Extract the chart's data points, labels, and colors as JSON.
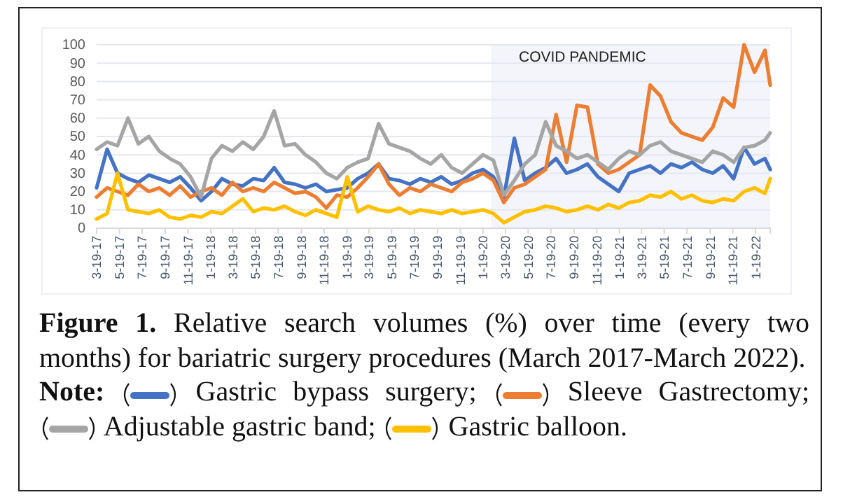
{
  "chart_data": {
    "type": "line",
    "title": "Figure 1. Relative search volumes (%) over time (every two months) for bariatric surgery procedures (March 2017-March 2022).",
    "legend_title": "Note:",
    "legend": "bottom",
    "grid": "y",
    "x": [
      "2017-03-19",
      "2017-04-16",
      "2017-05-14",
      "2017-06-11",
      "2017-07-09",
      "2017-08-06",
      "2017-09-03",
      "2017-10-01",
      "2017-10-29",
      "2017-11-26",
      "2017-12-24",
      "2018-01-21",
      "2018-02-18",
      "2018-03-18",
      "2018-04-15",
      "2018-05-13",
      "2018-06-10",
      "2018-07-08",
      "2018-08-05",
      "2018-09-02",
      "2018-09-30",
      "2018-10-28",
      "2018-11-25",
      "2018-12-23",
      "2019-01-20",
      "2019-02-17",
      "2019-03-17",
      "2019-04-14",
      "2019-05-12",
      "2019-06-09",
      "2019-07-07",
      "2019-08-04",
      "2019-09-01",
      "2019-09-29",
      "2019-10-27",
      "2019-11-24",
      "2019-12-22",
      "2020-01-19",
      "2020-02-16",
      "2020-03-15",
      "2020-04-12",
      "2020-05-10",
      "2020-06-07",
      "2020-07-05",
      "2020-08-02",
      "2020-08-30",
      "2020-09-27",
      "2020-10-25",
      "2020-11-22",
      "2020-12-20",
      "2021-01-17",
      "2021-02-14",
      "2021-03-14",
      "2021-04-11",
      "2021-05-09",
      "2021-06-06",
      "2021-07-04",
      "2021-08-01",
      "2021-08-29",
      "2021-09-26",
      "2021-10-24",
      "2021-11-21",
      "2021-12-19",
      "2022-01-16",
      "2022-02-13",
      "2022-02-27"
    ],
    "series": [
      {
        "name": "Gastric bypass surgery;",
        "color": "#4472c4",
        "values": [
          22,
          43,
          30,
          27,
          25,
          29,
          27,
          25,
          28,
          22,
          15,
          20,
          27,
          24,
          23,
          27,
          26,
          33,
          25,
          24,
          22,
          24,
          20,
          21,
          22,
          27,
          30,
          35,
          27,
          26,
          24,
          27,
          25,
          28,
          24,
          26,
          30,
          32,
          28,
          17,
          49,
          26,
          30,
          33,
          38,
          30,
          32,
          35,
          28,
          24,
          20,
          30,
          32,
          34,
          30,
          35,
          33,
          36,
          32,
          30,
          34,
          27,
          44,
          35,
          38,
          32
        ]
      },
      {
        "name": "Sleeve Gastrectomy;",
        "color": "#ed7d31",
        "values": [
          17,
          22,
          20,
          18,
          24,
          20,
          22,
          18,
          23,
          17,
          20,
          22,
          18,
          25,
          20,
          22,
          20,
          25,
          22,
          19,
          20,
          17,
          11,
          18,
          17,
          22,
          28,
          35,
          24,
          18,
          22,
          20,
          24,
          22,
          20,
          25,
          27,
          30,
          26,
          14,
          22,
          24,
          28,
          32,
          62,
          36,
          67,
          66,
          35,
          30,
          32,
          36,
          40,
          78,
          72,
          58,
          52,
          50,
          48,
          55,
          71,
          66,
          100,
          85,
          97,
          78
        ]
      },
      {
        "name": "Adjustable gastric band;",
        "color": "#a5a5a5",
        "values": [
          43,
          47,
          45,
          60,
          46,
          50,
          42,
          38,
          35,
          28,
          17,
          38,
          45,
          42,
          47,
          43,
          50,
          64,
          45,
          46,
          40,
          36,
          30,
          27,
          33,
          36,
          38,
          57,
          46,
          44,
          42,
          38,
          35,
          40,
          33,
          30,
          35,
          40,
          37,
          18,
          26,
          35,
          40,
          58,
          45,
          42,
          38,
          40,
          36,
          32,
          38,
          42,
          40,
          45,
          47,
          42,
          40,
          38,
          36,
          42,
          40,
          36,
          44,
          45,
          48,
          52
        ]
      },
      {
        "name": "Gastric balloon.",
        "color": "#ffc000",
        "values": [
          5,
          8,
          30,
          10,
          9,
          8,
          10,
          6,
          5,
          7,
          6,
          9,
          8,
          12,
          16,
          9,
          11,
          10,
          12,
          9,
          7,
          10,
          8,
          6,
          28,
          9,
          12,
          10,
          9,
          11,
          8,
          10,
          9,
          8,
          10,
          8,
          9,
          10,
          8,
          3,
          6,
          9,
          10,
          12,
          11,
          9,
          10,
          12,
          10,
          13,
          11,
          14,
          15,
          18,
          17,
          20,
          16,
          18,
          15,
          14,
          16,
          15,
          20,
          22,
          19,
          27
        ]
      }
    ],
    "xlim": [
      "2017-03-19",
      "2022-02-27"
    ],
    "xticks": [
      {
        "value": "2017-03-19",
        "label": "3-19-17"
      },
      {
        "value": "2017-05-19",
        "label": "5-19-17"
      },
      {
        "value": "2017-07-19",
        "label": "7-19-17"
      },
      {
        "value": "2017-09-19",
        "label": "9-19-17"
      },
      {
        "value": "2017-11-19",
        "label": "11-19-17"
      },
      {
        "value": "2018-01-19",
        "label": "1-19-18"
      },
      {
        "value": "2018-03-19",
        "label": "3-19-18"
      },
      {
        "value": "2018-05-19",
        "label": "5-19-18"
      },
      {
        "value": "2018-07-19",
        "label": "7-19-18"
      },
      {
        "value": "2018-09-19",
        "label": "9-19-18"
      },
      {
        "value": "2018-11-19",
        "label": "11-19-18"
      },
      {
        "value": "2019-01-19",
        "label": "1-19-19"
      },
      {
        "value": "2019-03-19",
        "label": "3-19-19"
      },
      {
        "value": "2019-05-19",
        "label": "5-19-19"
      },
      {
        "value": "2019-07-19",
        "label": "7-19-19"
      },
      {
        "value": "2019-09-19",
        "label": "9-19-19"
      },
      {
        "value": "2019-11-19",
        "label": "11-19-19"
      },
      {
        "value": "2020-01-19",
        "label": "1-19-20"
      },
      {
        "value": "2020-03-19",
        "label": "3-19-20"
      },
      {
        "value": "2020-05-19",
        "label": "5-19-20"
      },
      {
        "value": "2020-07-19",
        "label": "7-19-20"
      },
      {
        "value": "2020-09-19",
        "label": "9-19-20"
      },
      {
        "value": "2020-11-19",
        "label": "11-19-20"
      },
      {
        "value": "2021-01-19",
        "label": "1-19-21"
      },
      {
        "value": "2021-03-19",
        "label": "3-19-21"
      },
      {
        "value": "2021-05-19",
        "label": "5-19-21"
      },
      {
        "value": "2021-07-19",
        "label": "7-19-21"
      },
      {
        "value": "2021-09-19",
        "label": "9-19-21"
      },
      {
        "value": "2021-11-19",
        "label": "11-19-21"
      },
      {
        "value": "2022-01-19",
        "label": "1-19-22"
      }
    ],
    "ylim": [
      0,
      100
    ],
    "yticks": [
      0,
      10,
      20,
      30,
      40,
      50,
      60,
      70,
      80,
      90,
      100
    ],
    "bands": [
      {
        "axis": "x",
        "from": "2020-02-09",
        "to": "2022-02-27",
        "label": "COVID PANDEMIC",
        "color": "#f3f5fa"
      }
    ]
  }
}
